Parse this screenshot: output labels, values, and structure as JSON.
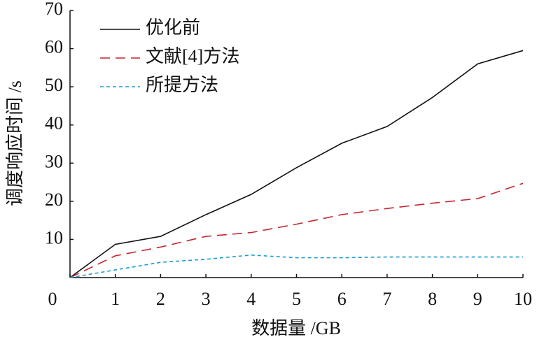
{
  "chart_data": {
    "type": "line",
    "x_label": "数据量 /GB",
    "y_label": "调度响应时间 /s",
    "x": [
      0,
      1,
      2,
      3,
      4,
      5,
      6,
      7,
      8,
      9,
      10
    ],
    "series": [
      {
        "name": "优化前",
        "color": "#111111",
        "dash": "solid",
        "values": [
          0,
          8.7,
          10.8,
          16.5,
          21.8,
          28.8,
          35.2,
          39.6,
          47.2,
          56,
          59.5
        ]
      },
      {
        "name": "文献[4]方法",
        "color": "#c4262e",
        "dash": "dashed",
        "values": [
          0,
          5.7,
          8,
          10.8,
          11.8,
          14,
          16.5,
          18.1,
          19.5,
          20.7,
          24.7
        ]
      },
      {
        "name": "所提方法",
        "color": "#1b9bd1",
        "dash": "dotted",
        "values": [
          0,
          2,
          4,
          4.8,
          5.9,
          5.2,
          5.2,
          5.4,
          5.4,
          5.4,
          5.4
        ]
      }
    ],
    "xlim": [
      0,
      10
    ],
    "xticks": [
      0,
      1,
      2,
      3,
      4,
      5,
      6,
      7,
      8,
      9,
      10
    ],
    "ylim": [
      0,
      70
    ],
    "yticks": [
      10,
      20,
      30,
      40,
      50,
      60,
      70
    ],
    "legend": "top-left"
  }
}
